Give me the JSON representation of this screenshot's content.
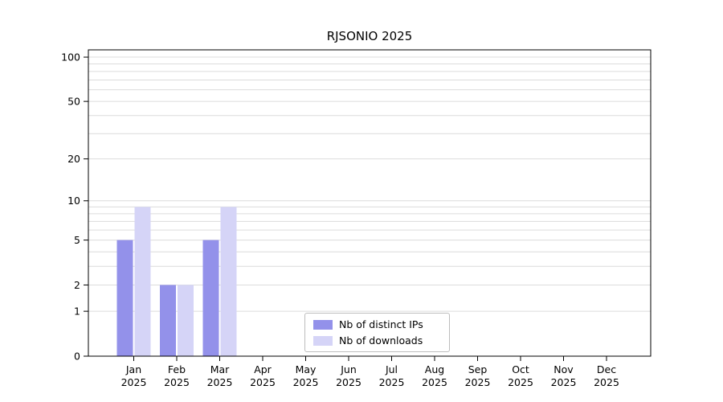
{
  "chart_data": {
    "type": "bar",
    "title": "RJSONIO 2025",
    "categories": [
      "Jan",
      "Feb",
      "Mar",
      "Apr",
      "May",
      "Jun",
      "Jul",
      "Aug",
      "Sep",
      "Oct",
      "Nov",
      "Dec"
    ],
    "category_year": "2025",
    "series": [
      {
        "name": "Nb of distinct IPs",
        "color": "#9391ea",
        "values": [
          5,
          2,
          5,
          0,
          0,
          0,
          0,
          0,
          0,
          0,
          0,
          0
        ]
      },
      {
        "name": "Nb of downloads",
        "color": "#d5d4f7",
        "values": [
          9,
          2,
          9,
          0,
          0,
          0,
          0,
          0,
          0,
          0,
          0,
          0
        ]
      }
    ],
    "yscale": "log1p",
    "ylim": [
      0,
      112
    ],
    "ytick_labels": [
      0,
      1,
      2,
      5,
      10,
      20,
      50,
      100
    ],
    "gridlines": [
      1,
      2,
      3,
      4,
      5,
      6,
      7,
      8,
      9,
      10,
      20,
      30,
      40,
      50,
      60,
      70,
      80,
      90,
      100
    ],
    "grid": true,
    "legend_position": "lower center",
    "colors": {
      "background": "#ffffff",
      "grid": "#dcdcdc",
      "axis": "#000000",
      "legend_border": "#bdbdbd"
    }
  }
}
